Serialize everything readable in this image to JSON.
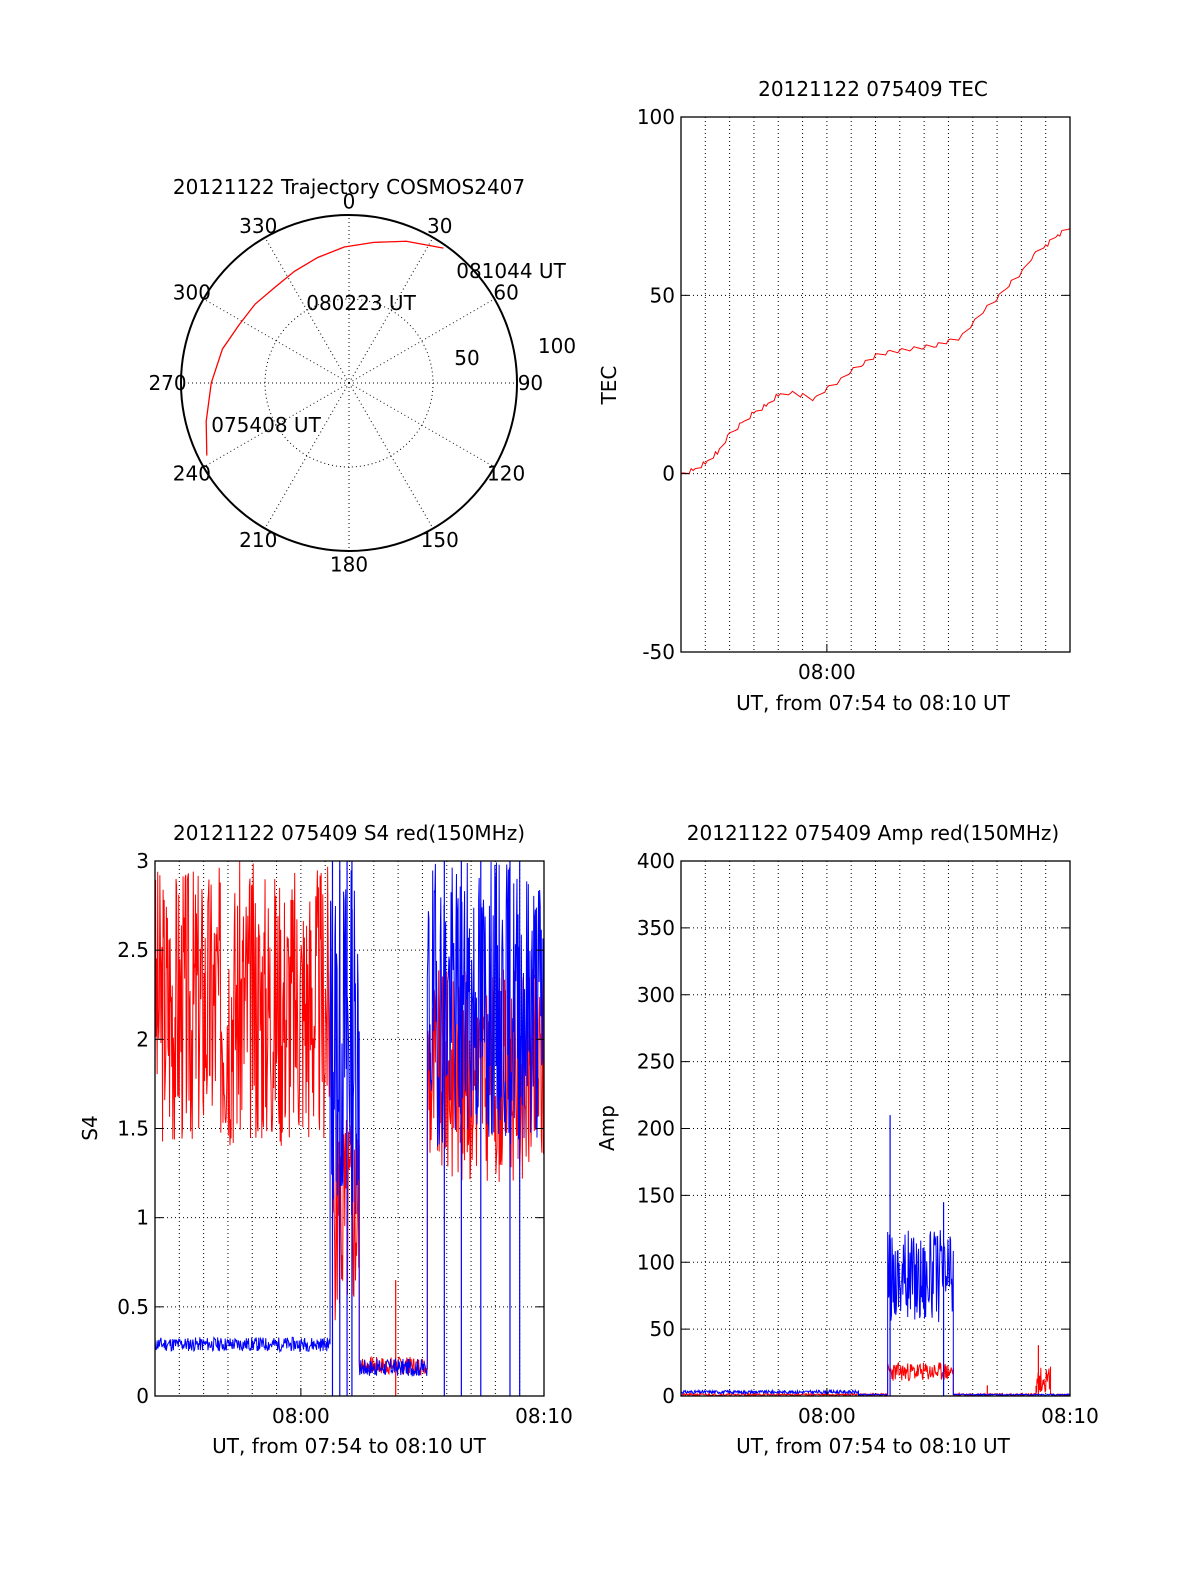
{
  "colors": {
    "red": "#ff0000",
    "blue": "#0000ff",
    "axis": "#000000",
    "grid": "#000000"
  },
  "chart_data": [
    {
      "id": "polar",
      "type": "polar-trajectory",
      "title": "20121122 Trajectory COSMOS2407",
      "azimuth_labels": [
        "0",
        "30",
        "60",
        "90",
        "120",
        "150",
        "180",
        "210",
        "240",
        "270",
        "300",
        "330"
      ],
      "elevation_labels": [
        "50",
        "100"
      ],
      "trajectory": {
        "color": "red",
        "points": [
          {
            "az": 243,
            "r": 95
          },
          {
            "az": 255,
            "r": 88
          },
          {
            "az": 270,
            "r": 82
          },
          {
            "az": 285,
            "r": 78
          },
          {
            "az": 298,
            "r": 74
          },
          {
            "az": 310,
            "r": 73
          },
          {
            "az": 322,
            "r": 72
          },
          {
            "az": 334,
            "r": 74
          },
          {
            "az": 346,
            "r": 77
          },
          {
            "az": 358,
            "r": 81
          },
          {
            "az": 10,
            "r": 85
          },
          {
            "az": 22,
            "r": 91
          },
          {
            "az": 35,
            "r": 98
          }
        ]
      },
      "annotations": [
        {
          "text": "081044 UT",
          "az": 42,
          "r": 102
        },
        {
          "text": "080223 UT",
          "az": 337,
          "r": 55
        },
        {
          "text": "075408 UT",
          "az": 238,
          "r": 65
        }
      ]
    },
    {
      "id": "tec",
      "type": "line",
      "title": "20121122 075409 TEC",
      "xlabel": "UT, from 07:54 to 08:10 UT",
      "ylabel": "TEC",
      "xlim": [
        0,
        16
      ],
      "ylim": [
        -50,
        100
      ],
      "yticks": [
        "-50",
        "0",
        "50",
        "100"
      ],
      "xticks": [
        {
          "x": 6,
          "label": "08:00"
        }
      ],
      "grid": true,
      "series": [
        {
          "color": "red",
          "x": [
            0,
            0.5,
            1,
            1.5,
            2,
            2.5,
            3,
            3.5,
            4,
            4.5,
            5,
            5.5,
            6,
            6.5,
            7,
            7.5,
            8,
            8.5,
            9,
            9.5,
            10,
            10.5,
            11,
            11.5,
            12,
            12.5,
            13,
            13.5,
            14,
            14.5,
            15,
            15.5,
            16
          ],
          "y": [
            0,
            1,
            3,
            6,
            11,
            14,
            17,
            19,
            22,
            23,
            22,
            21,
            24,
            26,
            29,
            31,
            33,
            34,
            34.5,
            35,
            35.5,
            36,
            37,
            38,
            42,
            46,
            49,
            53,
            56,
            61,
            64,
            67,
            69
          ]
        }
      ]
    },
    {
      "id": "s4",
      "type": "line",
      "title": "20121122 075409 S4 red(150MHz)",
      "xlabel": "UT, from 07:54 to 08:10 UT",
      "ylabel": "S4",
      "xlim": [
        0,
        16
      ],
      "ylim": [
        0,
        3
      ],
      "yticks": [
        "0",
        "0.5",
        "1",
        "1.5",
        "2",
        "2.5",
        "3"
      ],
      "xticks": [
        {
          "x": 6,
          "label": "08:00"
        },
        {
          "x": 16,
          "label": "08:10"
        }
      ],
      "grid": true,
      "series": [
        {
          "color": "red",
          "segments": [
            {
              "x0": 0,
              "x1": 7.3,
              "base": 2.2,
              "amp": 0.8,
              "seed": 3
            },
            {
              "x0": 7.3,
              "x1": 8.4,
              "base": 1.0,
              "amp": 0.6,
              "seed": 5
            },
            {
              "x0": 8.4,
              "x1": 11.2,
              "base": 0.17,
              "amp": 0.05,
              "seed": 7
            },
            {
              "x0": 11.2,
              "x1": 16,
              "base": 1.8,
              "amp": 0.6,
              "seed": 9
            }
          ],
          "spikes": [
            {
              "x": 9.9,
              "y": 0.65
            }
          ]
        },
        {
          "color": "blue",
          "segments": [
            {
              "x0": 0,
              "x1": 7.2,
              "base": 0.29,
              "amp": 0.04,
              "seed": 11
            },
            {
              "x0": 7.2,
              "x1": 8.4,
              "base": 2.0,
              "amp": 1.0,
              "seed": 13
            },
            {
              "x0": 8.4,
              "x1": 11.2,
              "base": 0.16,
              "amp": 0.05,
              "seed": 17
            },
            {
              "x0": 11.2,
              "x1": 16,
              "base": 2.2,
              "amp": 0.8,
              "seed": 19
            }
          ],
          "spikes": [
            {
              "x": 7.3,
              "y": 3
            },
            {
              "x": 7.6,
              "y": 0
            },
            {
              "x": 7.9,
              "y": 3
            },
            {
              "x": 8.1,
              "y": 0
            },
            {
              "x": 11.9,
              "y": 0
            },
            {
              "x": 12.6,
              "y": 0
            },
            {
              "x": 13.4,
              "y": 0
            },
            {
              "x": 14.6,
              "y": 0
            },
            {
              "x": 15.0,
              "y": 0
            }
          ]
        }
      ]
    },
    {
      "id": "amp",
      "type": "line",
      "title": "20121122 075409 Amp red(150MHz)",
      "xlabel": "UT, from 07:54 to 08:10 UT",
      "ylabel": "Amp",
      "xlim": [
        0,
        16
      ],
      "ylim": [
        0,
        400
      ],
      "yticks": [
        "0",
        "50",
        "100",
        "150",
        "200",
        "250",
        "300",
        "350",
        "400"
      ],
      "xticks": [
        {
          "x": 6,
          "label": "08:00"
        },
        {
          "x": 16,
          "label": "08:10"
        }
      ],
      "grid": true,
      "series": [
        {
          "color": "red",
          "segments": [
            {
              "x0": 0,
              "x1": 8.5,
              "base": 1,
              "amp": 0.8,
              "seed": 21
            },
            {
              "x0": 8.5,
              "x1": 11.2,
              "base": 18,
              "amp": 7,
              "seed": 23
            },
            {
              "x0": 11.2,
              "x1": 14.6,
              "base": 1,
              "amp": 0.8,
              "seed": 25
            },
            {
              "x0": 14.6,
              "x1": 15.2,
              "base": 12,
              "amp": 10,
              "seed": 27
            },
            {
              "x0": 15.2,
              "x1": 16,
              "base": 1,
              "amp": 0.5,
              "seed": 29
            }
          ],
          "spikes": [
            {
              "x": 12.6,
              "y": 8
            },
            {
              "x": 14.7,
              "y": 38
            }
          ]
        },
        {
          "color": "blue",
          "segments": [
            {
              "x0": 0,
              "x1": 7.3,
              "base": 3,
              "amp": 1.2,
              "seed": 31
            },
            {
              "x0": 7.3,
              "x1": 8.5,
              "base": 1,
              "amp": 0.5,
              "seed": 33
            },
            {
              "x0": 8.5,
              "x1": 11.2,
              "base": 90,
              "amp": 35,
              "seed": 35
            },
            {
              "x0": 11.2,
              "x1": 16,
              "base": 1,
              "amp": 0.5,
              "seed": 37
            }
          ],
          "spikes": [
            {
              "x": 8.6,
              "y": 210
            },
            {
              "x": 10.8,
              "y": 145
            }
          ]
        }
      ]
    }
  ]
}
